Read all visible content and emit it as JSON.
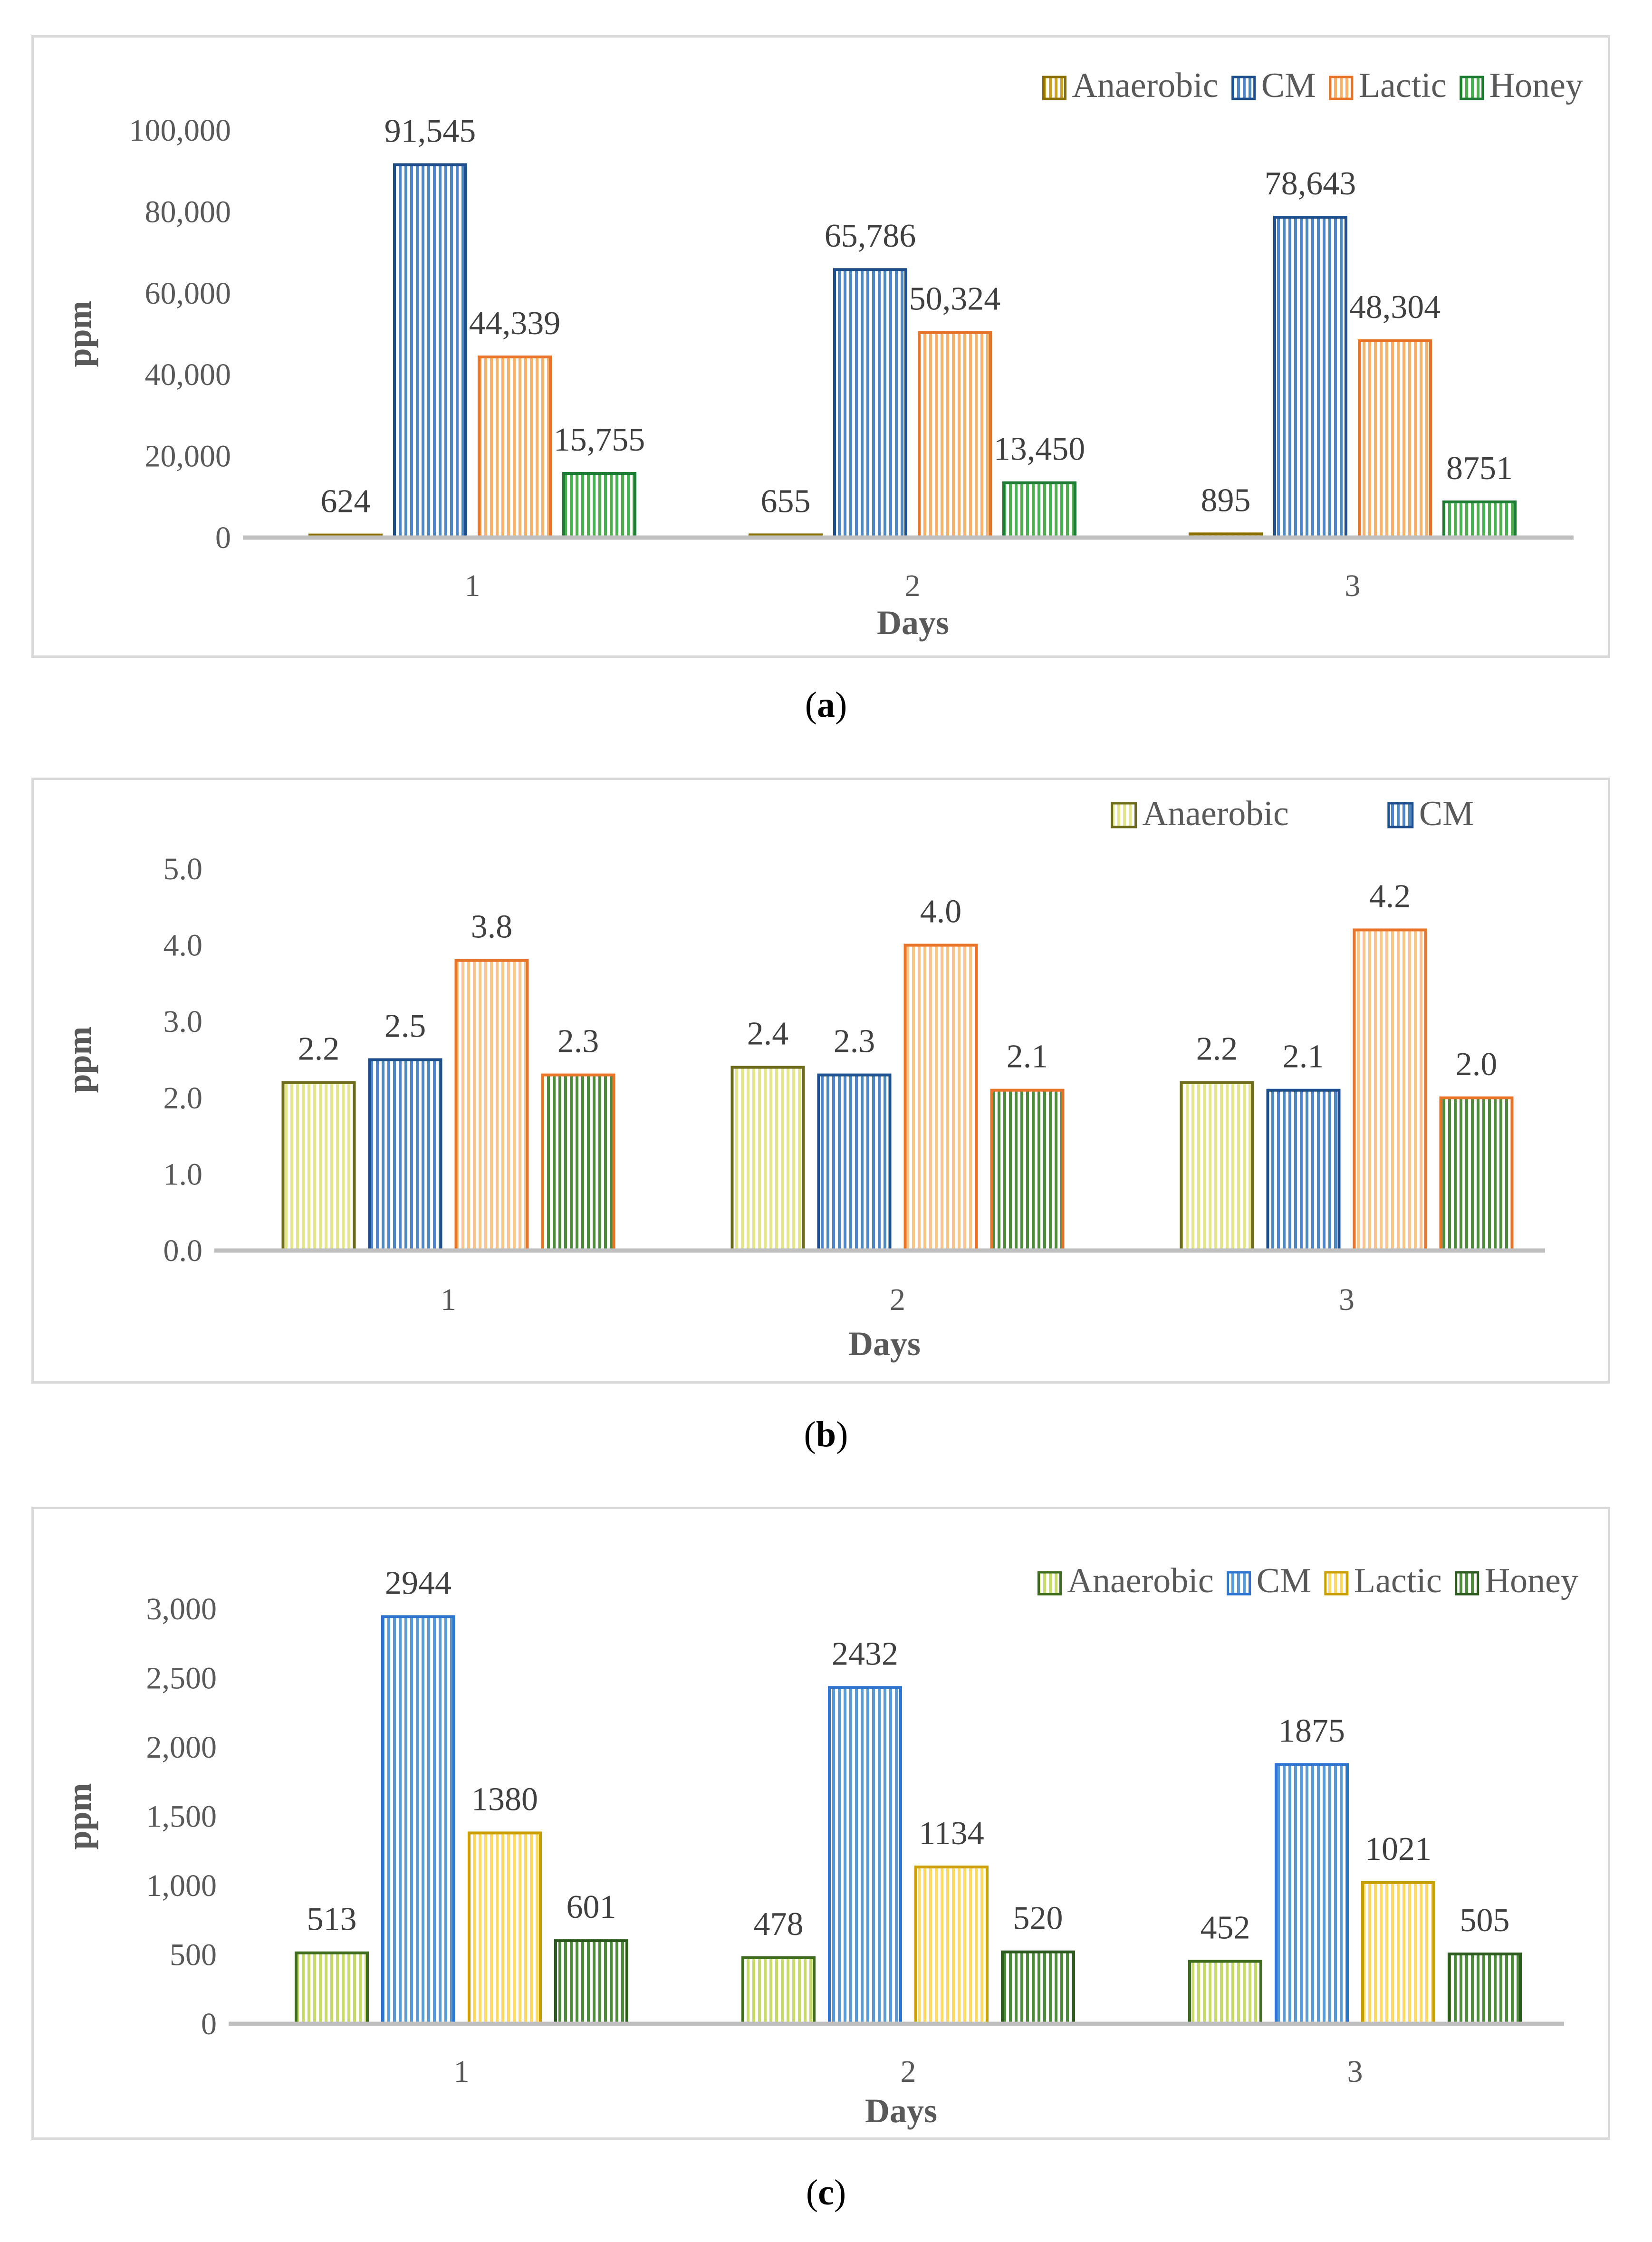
{
  "chart_data": [
    {
      "type": "bar",
      "panel": "a",
      "categories": [
        "1",
        "2",
        "3"
      ],
      "xlabel": "Days",
      "ylabel": "ppm",
      "ylim": [
        0,
        100000
      ],
      "yticks": [
        "0",
        "20,000",
        "40,000",
        "60,000",
        "80,000",
        "100,000"
      ],
      "ytick_values": [
        0,
        20000,
        40000,
        60000,
        80000,
        100000
      ],
      "legend_position": "top-right",
      "series": [
        {
          "name": "Anaerobic",
          "values": [
            624,
            655,
            895
          ],
          "labels": [
            "624",
            "655",
            "895"
          ],
          "color": "#c9a227",
          "stroke": "#8a7000"
        },
        {
          "name": "CM",
          "values": [
            91545,
            65786,
            78643
          ],
          "labels": [
            "91,545",
            "65,786",
            "78,643"
          ],
          "color": "#4f86c6",
          "stroke": "#1f4e8c"
        },
        {
          "name": "Lactic",
          "values": [
            44339,
            50324,
            48304
          ],
          "labels": [
            "44,339",
            "50,324",
            "48,304"
          ],
          "color": "#f6b26b",
          "stroke": "#e8742a"
        },
        {
          "name": "Honey",
          "values": [
            15755,
            13450,
            8751
          ],
          "labels": [
            "15,755",
            "13,450",
            "8751"
          ],
          "color": "#4caf50",
          "stroke": "#1e7b34"
        }
      ]
    },
    {
      "type": "bar",
      "panel": "b",
      "categories": [
        "1",
        "2",
        "3"
      ],
      "xlabel": "Days",
      "ylabel": "ppm",
      "ylim": [
        0,
        5
      ],
      "yticks": [
        "0.0",
        "1.0",
        "2.0",
        "3.0",
        "4.0",
        "5.0"
      ],
      "ytick_values": [
        0,
        1,
        2,
        3,
        4,
        5
      ],
      "legend_position": "top-right",
      "series": [
        {
          "name": "Anaerobic",
          "values": [
            2.2,
            2.4,
            2.2
          ],
          "labels": [
            "2.2",
            "2.4",
            "2.2"
          ],
          "color": "#e3e68a",
          "stroke": "#6b6b1a"
        },
        {
          "name": "CM",
          "values": [
            2.5,
            2.3,
            2.1
          ],
          "labels": [
            "2.5",
            "2.3",
            "2.1"
          ],
          "color": "#4f86c6",
          "stroke": "#1f4e8c"
        },
        {
          "name": "",
          "values": [
            3.8,
            4.0,
            4.2
          ],
          "labels": [
            "3.8",
            "4.0",
            "4.2"
          ],
          "color": "#f8c58c",
          "stroke": "#e8742a"
        },
        {
          "name": "",
          "values": [
            2.3,
            2.1,
            2.0
          ],
          "labels": [
            "2.3",
            "2.1",
            "2.0"
          ],
          "color": "#4e8a3e",
          "stroke": "#e8742a"
        }
      ]
    },
    {
      "type": "bar",
      "panel": "c",
      "categories": [
        "1",
        "2",
        "3"
      ],
      "xlabel": "Days",
      "ylabel": "ppm",
      "ylim": [
        0,
        3000
      ],
      "yticks": [
        "0",
        "500",
        "1,000",
        "1,500",
        "2,000",
        "2,500",
        "3,000"
      ],
      "ytick_values": [
        0,
        500,
        1000,
        1500,
        2000,
        2500,
        3000
      ],
      "legend_position": "top-right",
      "series": [
        {
          "name": "Anaerobic",
          "values": [
            513,
            478,
            452
          ],
          "labels": [
            "513",
            "478",
            "452"
          ],
          "color": "#c6d96b",
          "stroke": "#3f6b1e"
        },
        {
          "name": "CM",
          "values": [
            2944,
            2432,
            1875
          ],
          "labels": [
            "2944",
            "2432",
            "1875"
          ],
          "color": "#5b9bd5",
          "stroke": "#2e75d0"
        },
        {
          "name": "Lactic",
          "values": [
            1380,
            1134,
            1021
          ],
          "labels": [
            "1380",
            "1134",
            "1021"
          ],
          "color": "#ffd966",
          "stroke": "#c9a000"
        },
        {
          "name": "Honey",
          "values": [
            601,
            520,
            505
          ],
          "labels": [
            "601",
            "520",
            "505"
          ],
          "color": "#4e8a3e",
          "stroke": "#2d5a1e"
        }
      ]
    }
  ],
  "captions": [
    {
      "open": "(",
      "letter": "a",
      "close": ")"
    },
    {
      "open": "(",
      "letter": "b",
      "close": ")"
    },
    {
      "open": "(",
      "letter": "c",
      "close": ")"
    }
  ]
}
